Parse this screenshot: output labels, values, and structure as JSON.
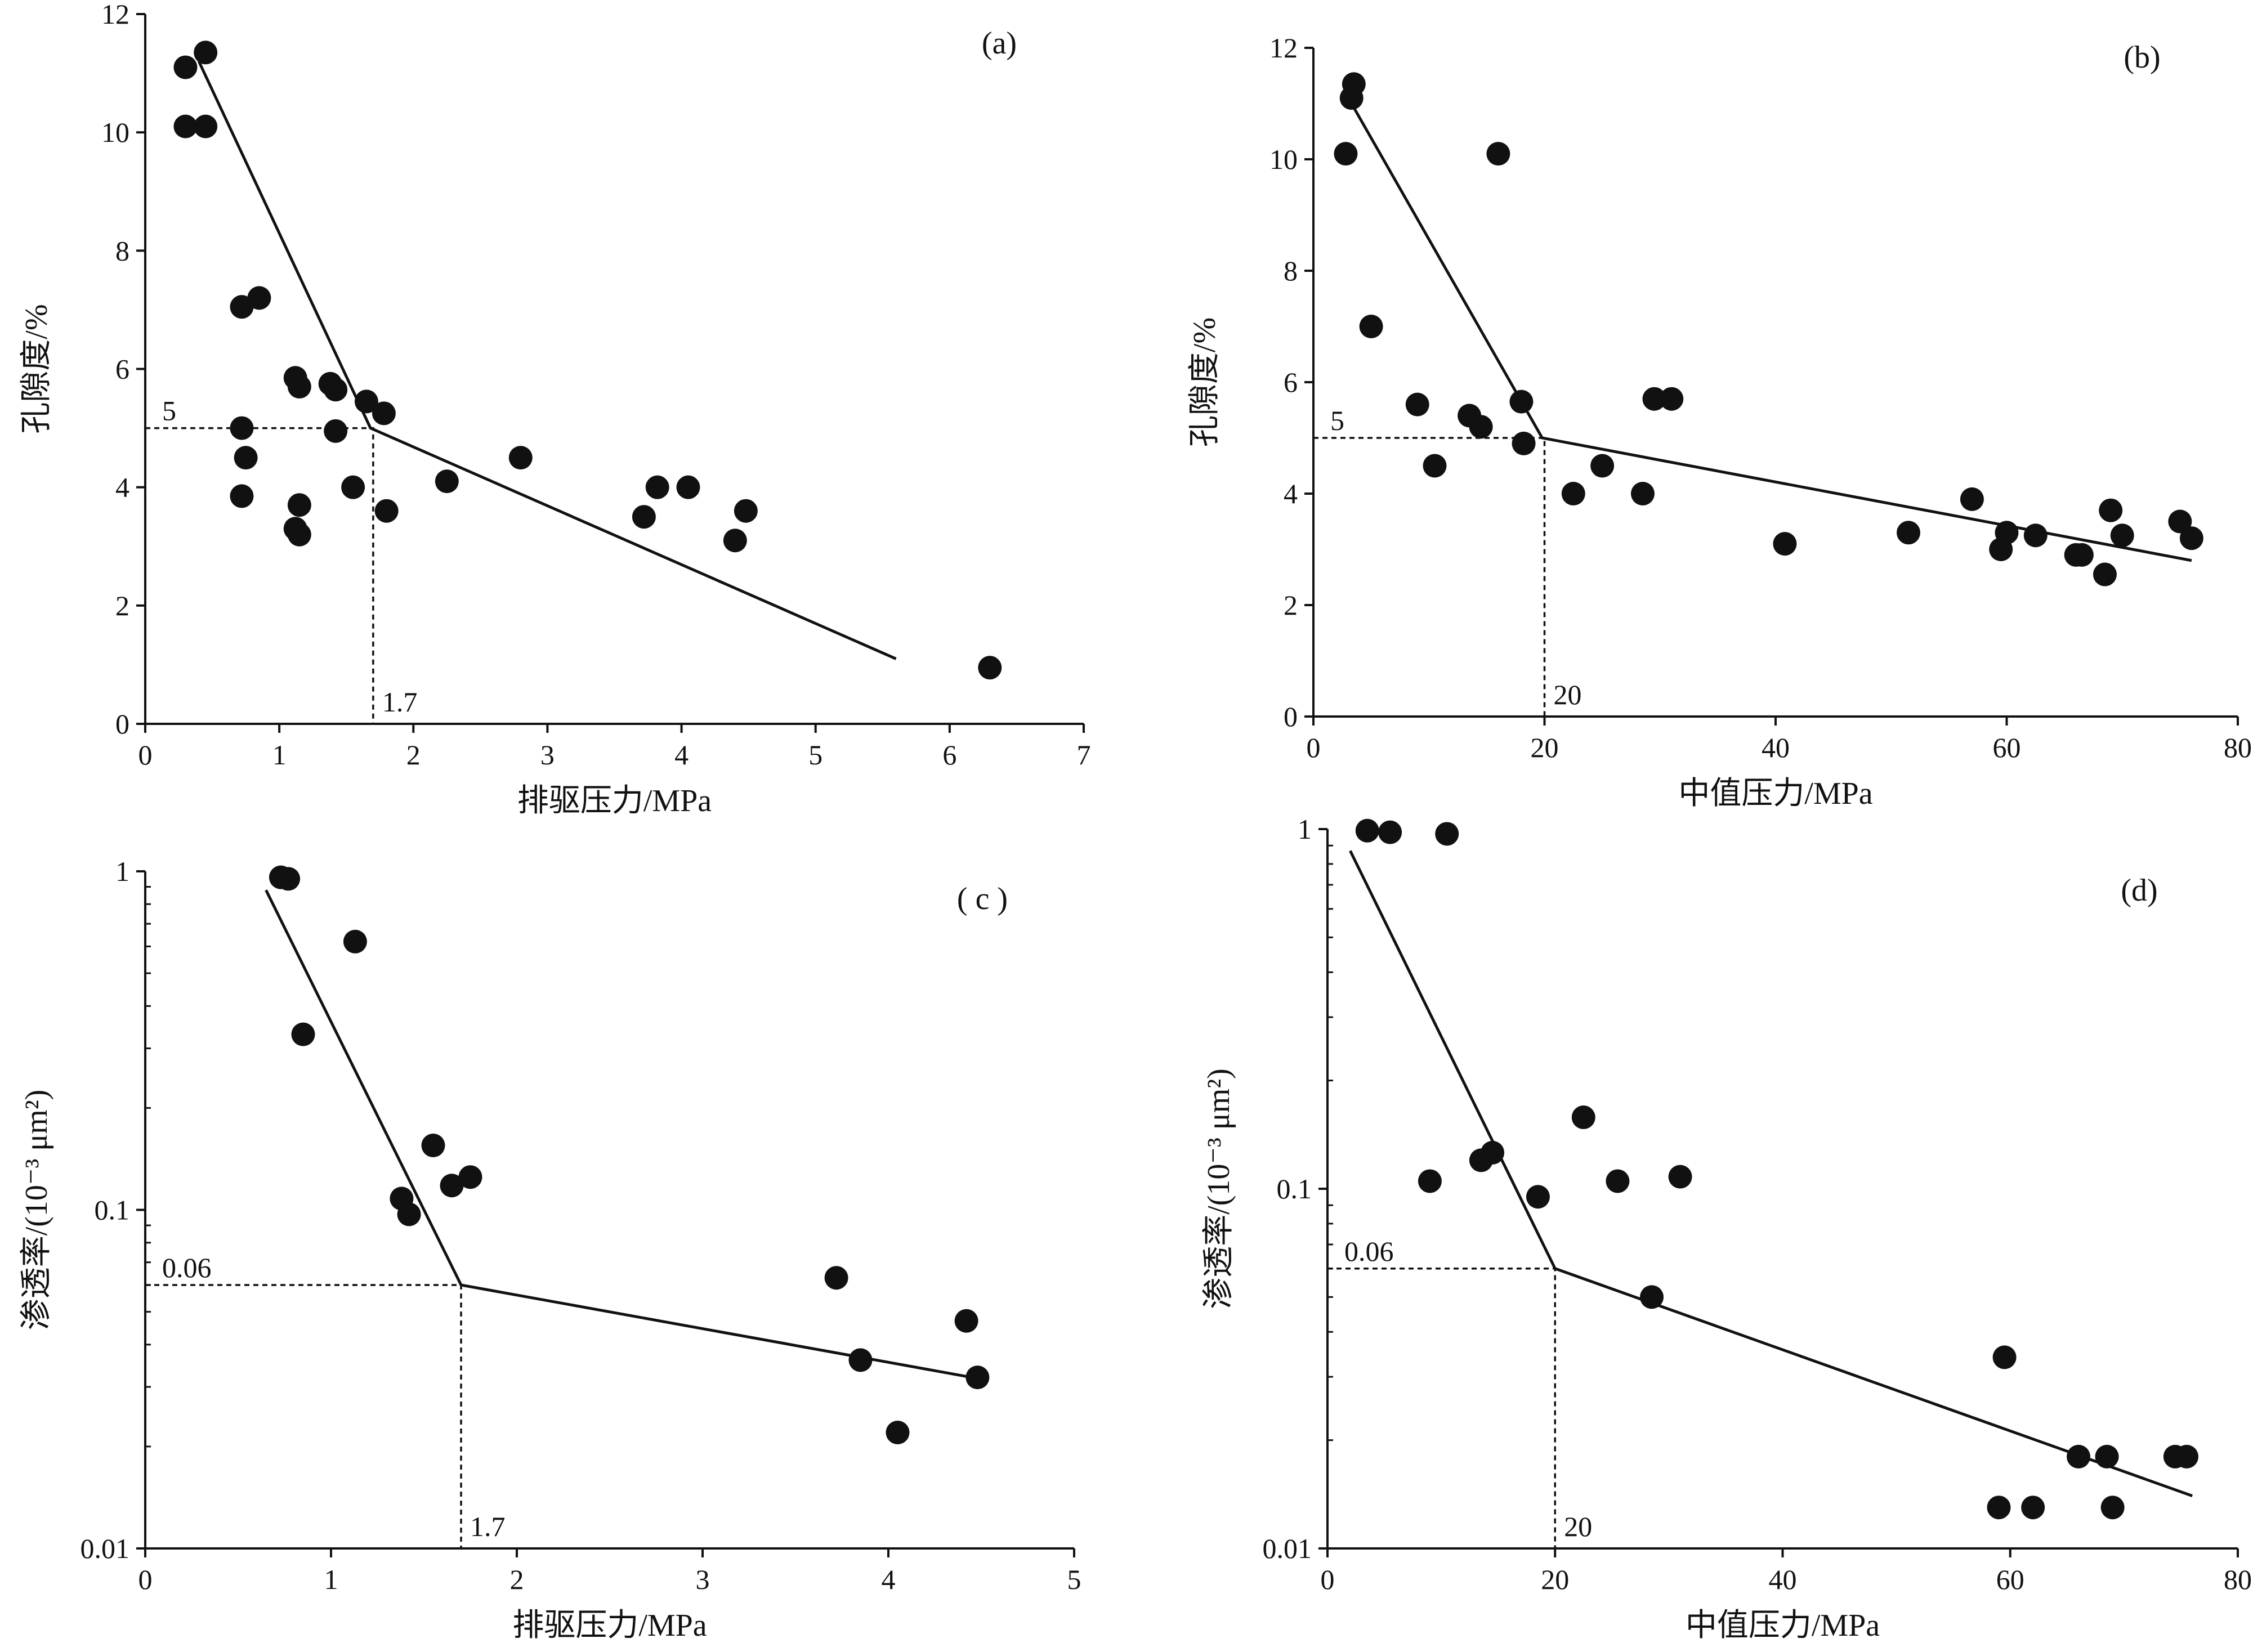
{
  "chart_data": [
    {
      "id": "a",
      "type": "scatter",
      "tag": "(a)",
      "xlabel": "排驱压力/MPa",
      "ylabel": "孔隙度/%",
      "xlim": [
        0,
        7
      ],
      "ylim": [
        0,
        12
      ],
      "yscale": "linear",
      "xticks": [
        0,
        1,
        2,
        3,
        4,
        5,
        6,
        7
      ],
      "yticks": [
        0,
        2,
        4,
        6,
        8,
        10,
        12
      ],
      "xtick_labels": [
        "0",
        "1",
        "2",
        "3",
        "4",
        "5",
        "6",
        "7"
      ],
      "ytick_labels": [
        "0",
        "2",
        "4",
        "6",
        "8",
        "10",
        "12"
      ],
      "points": [
        [
          0.3,
          11.1
        ],
        [
          0.45,
          11.35
        ],
        [
          0.3,
          10.1
        ],
        [
          0.45,
          10.1
        ],
        [
          0.72,
          7.05
        ],
        [
          0.85,
          7.2
        ],
        [
          1.12,
          5.85
        ],
        [
          1.15,
          5.7
        ],
        [
          1.38,
          5.75
        ],
        [
          1.42,
          5.65
        ],
        [
          1.65,
          5.45
        ],
        [
          1.78,
          5.25
        ],
        [
          0.72,
          5.0
        ],
        [
          0.75,
          4.5
        ],
        [
          1.42,
          4.95
        ],
        [
          0.72,
          3.85
        ],
        [
          1.15,
          3.7
        ],
        [
          1.12,
          3.3
        ],
        [
          1.15,
          3.2
        ],
        [
          1.55,
          4.0
        ],
        [
          1.8,
          3.6
        ],
        [
          2.25,
          4.1
        ],
        [
          2.8,
          4.5
        ],
        [
          3.72,
          3.5
        ],
        [
          3.82,
          4.0
        ],
        [
          4.05,
          4.0
        ],
        [
          4.4,
          3.1
        ],
        [
          4.48,
          3.6
        ],
        [
          6.3,
          0.95
        ]
      ],
      "trend_line": [
        [
          0.4,
          11.2
        ],
        [
          1.68,
          5.0
        ],
        [
          5.6,
          1.1
        ]
      ],
      "threshold": {
        "x": 1.7,
        "y": 5,
        "x_label": "1.7",
        "y_label": "5"
      }
    },
    {
      "id": "b",
      "type": "scatter",
      "tag": "(b)",
      "xlabel": "中值压力/MPa",
      "ylabel": "孔隙度/%",
      "xlim": [
        0,
        80
      ],
      "ylim": [
        0,
        12
      ],
      "yscale": "linear",
      "xticks": [
        0,
        20,
        40,
        60,
        80
      ],
      "yticks": [
        0,
        2,
        4,
        6,
        8,
        10,
        12
      ],
      "xtick_labels": [
        "0",
        "20",
        "40",
        "60",
        "80"
      ],
      "ytick_labels": [
        "0",
        "2",
        "4",
        "6",
        "8",
        "10",
        "12"
      ],
      "points": [
        [
          3.5,
          11.35
        ],
        [
          3.3,
          11.1
        ],
        [
          2.8,
          10.1
        ],
        [
          16.0,
          10.1
        ],
        [
          5.0,
          7.0
        ],
        [
          9.0,
          5.6
        ],
        [
          13.5,
          5.4
        ],
        [
          14.5,
          5.2
        ],
        [
          18.0,
          5.65
        ],
        [
          18.2,
          4.9
        ],
        [
          29.5,
          5.7
        ],
        [
          31.0,
          5.7
        ],
        [
          10.5,
          4.5
        ],
        [
          22.5,
          4.0
        ],
        [
          25.0,
          4.5
        ],
        [
          28.5,
          4.0
        ],
        [
          40.8,
          3.1
        ],
        [
          51.5,
          3.3
        ],
        [
          57.0,
          3.9
        ],
        [
          59.5,
          3.0
        ],
        [
          60.0,
          3.3
        ],
        [
          62.5,
          3.25
        ],
        [
          66.0,
          2.9
        ],
        [
          66.5,
          2.9
        ],
        [
          68.5,
          2.55
        ],
        [
          69.0,
          3.7
        ],
        [
          70.0,
          3.25
        ],
        [
          75.0,
          3.5
        ],
        [
          76.0,
          3.2
        ]
      ],
      "trend_line": [
        [
          3.3,
          11.0
        ],
        [
          19.8,
          5.0
        ],
        [
          76.0,
          2.8
        ]
      ],
      "threshold": {
        "x": 20,
        "y": 5,
        "x_label": "20",
        "y_label": "5"
      }
    },
    {
      "id": "c",
      "type": "scatter",
      "tag": "( c )",
      "xlabel": "排驱压力/MPa",
      "ylabel": "渗透率/(10⁻³ μm²)",
      "xlim": [
        0,
        5
      ],
      "ylim": [
        0.01,
        1
      ],
      "yscale": "log",
      "xticks": [
        0,
        1,
        2,
        3,
        4,
        5
      ],
      "yticks": [
        0.01,
        0.1,
        1
      ],
      "xtick_labels": [
        "0",
        "1",
        "2",
        "3",
        "4",
        "5"
      ],
      "ytick_labels": [
        "0.01",
        "0.1",
        "1"
      ],
      "points": [
        [
          0.73,
          0.96
        ],
        [
          0.77,
          0.95
        ],
        [
          1.13,
          0.62
        ],
        [
          0.85,
          0.33
        ],
        [
          1.55,
          0.155
        ],
        [
          1.75,
          0.125
        ],
        [
          1.65,
          0.118
        ],
        [
          1.38,
          0.108
        ],
        [
          1.42,
          0.097
        ],
        [
          3.72,
          0.063
        ],
        [
          4.42,
          0.047
        ],
        [
          3.85,
          0.036
        ],
        [
          4.48,
          0.032
        ],
        [
          4.05,
          0.022
        ]
      ],
      "trend_line": [
        [
          0.65,
          0.88
        ],
        [
          1.7,
          0.06
        ],
        [
          4.45,
          0.032
        ]
      ],
      "threshold": {
        "x": 1.7,
        "y": 0.06,
        "x_label": "1.7",
        "y_label": "0.06"
      }
    },
    {
      "id": "d",
      "type": "scatter",
      "tag": "(d)",
      "xlabel": "中值压力/MPa",
      "ylabel": "渗透率/(10⁻³ μm²)",
      "xlim": [
        0,
        80
      ],
      "ylim": [
        0.01,
        1
      ],
      "yscale": "log",
      "xticks": [
        0,
        20,
        40,
        60,
        80
      ],
      "yticks": [
        0.01,
        0.1,
        1
      ],
      "xtick_labels": [
        "0",
        "20",
        "40",
        "60",
        "80"
      ],
      "ytick_labels": [
        "0.01",
        "0.1",
        "1"
      ],
      "points": [
        [
          3.5,
          0.99
        ],
        [
          5.5,
          0.98
        ],
        [
          10.5,
          0.97
        ],
        [
          22.5,
          0.158
        ],
        [
          14.5,
          0.126
        ],
        [
          13.5,
          0.12
        ],
        [
          31.0,
          0.108
        ],
        [
          25.5,
          0.105
        ],
        [
          9.0,
          0.105
        ],
        [
          18.5,
          0.095
        ],
        [
          28.5,
          0.05
        ],
        [
          59.5,
          0.034
        ],
        [
          66.0,
          0.018
        ],
        [
          68.5,
          0.018
        ],
        [
          74.5,
          0.018
        ],
        [
          75.5,
          0.018
        ],
        [
          59.0,
          0.013
        ],
        [
          62.0,
          0.013
        ],
        [
          69.0,
          0.013
        ]
      ],
      "trend_line": [
        [
          2.0,
          0.87
        ],
        [
          20.0,
          0.06
        ],
        [
          76.0,
          0.014
        ]
      ],
      "threshold": {
        "x": 20,
        "y": 0.06,
        "x_label": "20",
        "y_label": "0.06"
      }
    }
  ]
}
